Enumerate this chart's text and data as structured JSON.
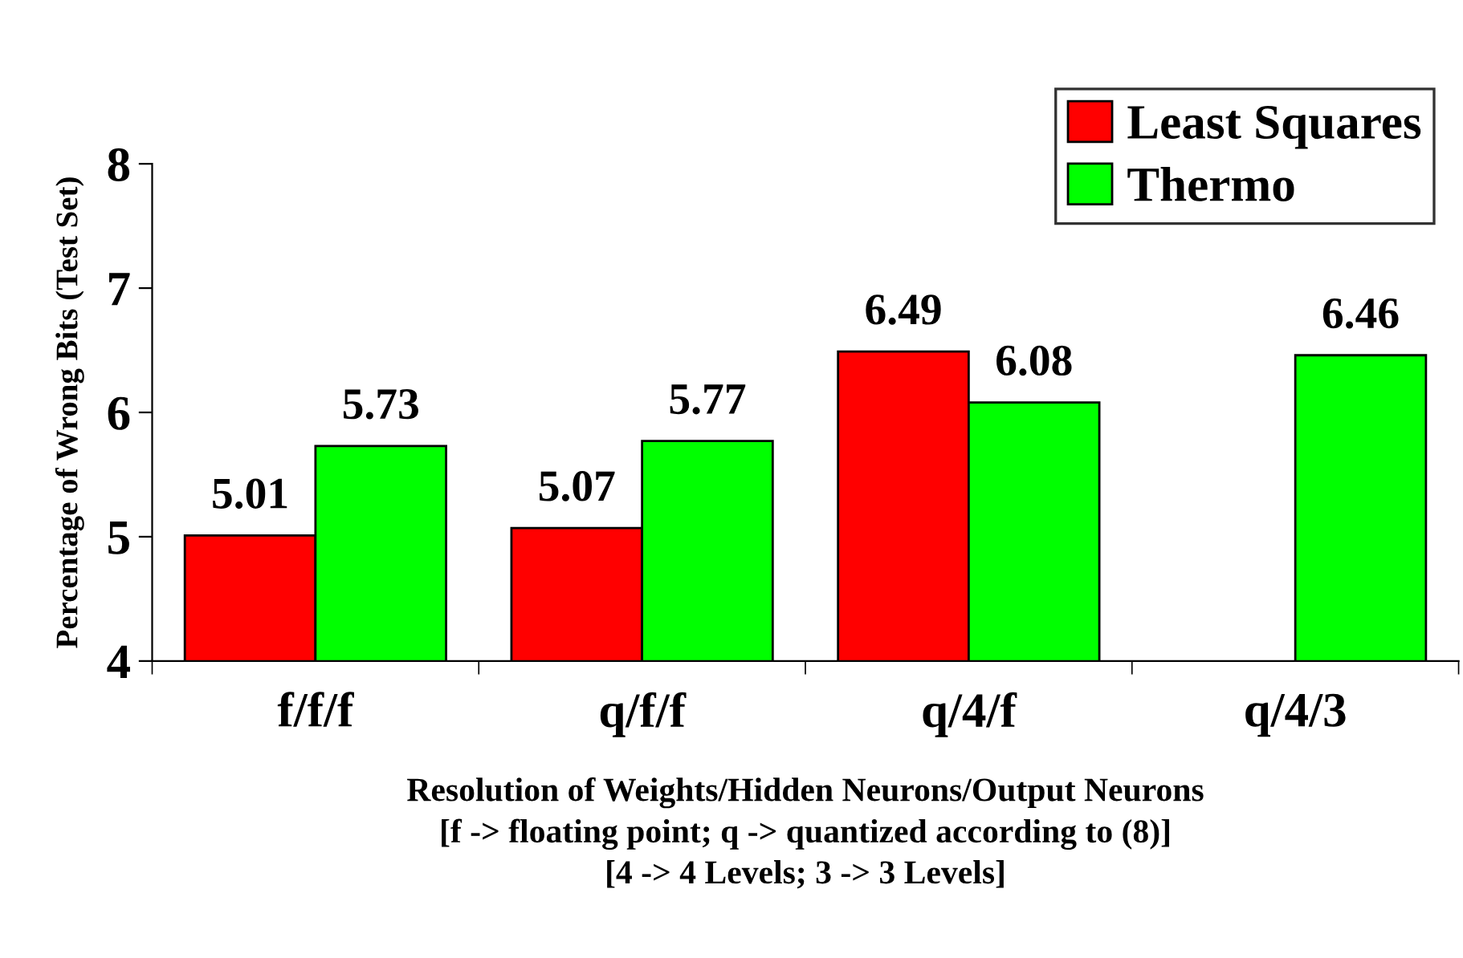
{
  "chart_data": {
    "type": "bar",
    "ylabel": "Percentage of Wrong Bits (Test Set)",
    "xlabel": "Resolution of Weights/Hidden Neurons/Output Neurons\n[f -> floating point; q -> quantized according to (8)]\n[4 -> 4 Levels; 3 -> 3 Levels]",
    "categories": [
      "f/f/f",
      "q/f/f",
      "q/4/f",
      "q/4/3"
    ],
    "series": [
      {
        "name": "Least Squares",
        "color": "#ff0000",
        "values": [
          5.01,
          5.07,
          6.49,
          null
        ]
      },
      {
        "name": "Thermo",
        "color": "#00ff00",
        "values": [
          5.73,
          5.77,
          6.08,
          6.46
        ]
      }
    ],
    "ylim": [
      4,
      8
    ],
    "yticks": [
      4,
      5,
      6,
      7,
      8
    ],
    "data_labels": true,
    "grid": false,
    "legend": "top right"
  }
}
